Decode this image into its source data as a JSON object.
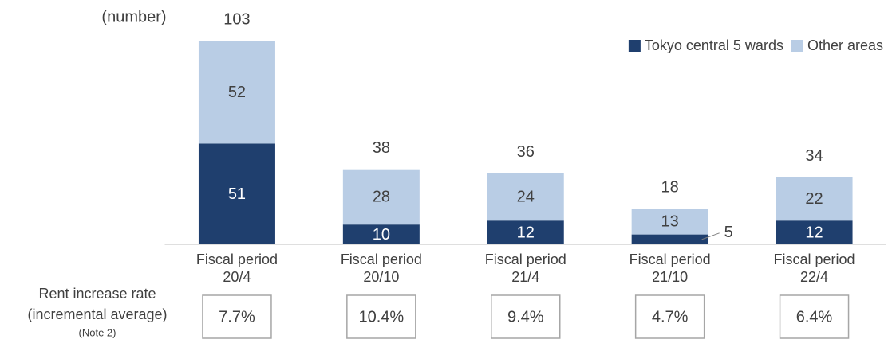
{
  "chart_data": {
    "type": "stacked_bar",
    "unit_label": "(number)",
    "categories": [
      "Fiscal period\n20/4",
      "Fiscal period\n20/10",
      "Fiscal period\n21/4",
      "Fiscal period\n21/10",
      "Fiscal period\n22/4"
    ],
    "series": [
      {
        "name": "Tokyo central 5 wards",
        "color": "#1f3f6e",
        "label_color": "#ffffff",
        "values": [
          51,
          10,
          12,
          5,
          12
        ]
      },
      {
        "name": "Other areas",
        "color": "#b9cde5",
        "label_color": "#404040",
        "values": [
          52,
          28,
          24,
          13,
          22
        ]
      }
    ],
    "totals": [
      103,
      38,
      36,
      18,
      34
    ],
    "ylim": [
      0,
      110
    ],
    "legend": "top-right",
    "rent_increase_rate": {
      "label": "Rent increase rate\n(incremental average)",
      "note": "(Note 2)",
      "values": [
        7.7,
        10.4,
        9.4,
        4.7,
        6.4
      ],
      "value_labels": [
        "7.7%",
        "10.4%",
        "9.4%",
        "4.7%",
        "6.4%"
      ]
    }
  }
}
